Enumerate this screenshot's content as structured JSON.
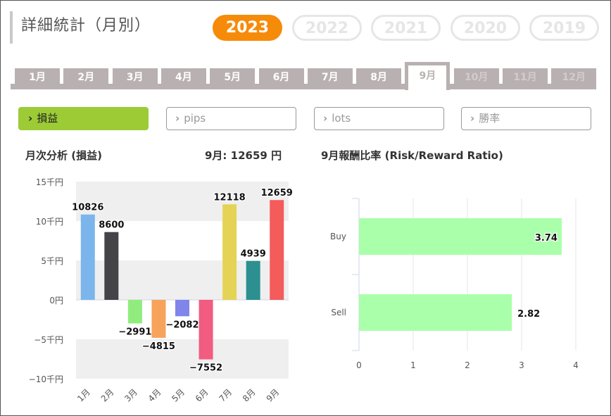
{
  "page": {
    "title": "詳細統計（月別）"
  },
  "years": [
    {
      "label": "2023",
      "active": true
    },
    {
      "label": "2022",
      "active": false
    },
    {
      "label": "2021",
      "active": false
    },
    {
      "label": "2020",
      "active": false
    },
    {
      "label": "2019",
      "active": false
    }
  ],
  "months": [
    "1月",
    "2月",
    "3月",
    "4月",
    "5月",
    "6月",
    "7月",
    "8月",
    "9月",
    "10月",
    "11月",
    "12月"
  ],
  "active_month_index": 8,
  "metrics": [
    {
      "label": "損益",
      "active": true
    },
    {
      "label": "pips",
      "active": false
    },
    {
      "label": "lots",
      "active": false
    },
    {
      "label": "勝率",
      "active": false
    }
  ],
  "monthly": {
    "title": "月次分析 (損益)",
    "summary": "9月:  12659 円"
  },
  "rr": {
    "title": "9月報酬比率 (Risk/Reward Ratio)"
  },
  "colors": {
    "accent": "#f68b0a",
    "active_metric": "#9ccb36",
    "tab": "#b9b1b1",
    "rr_bar": "#aaffaa"
  },
  "chart_data": [
    {
      "type": "bar",
      "categories": [
        "1月",
        "2月",
        "3月",
        "4月",
        "5月",
        "6月",
        "7月",
        "8月",
        "9月"
      ],
      "values": [
        10826,
        8600,
        -2991,
        -4815,
        -2082,
        -7552,
        12118,
        4939,
        12659
      ],
      "bar_colors": [
        "#7cb5ec",
        "#434348",
        "#90ed7d",
        "#f7a35c",
        "#8085e9",
        "#f15c80",
        "#e4d354",
        "#2b908f",
        "#f45b5b"
      ],
      "ylim": [
        -10000,
        15000
      ],
      "yticks": [
        15000,
        10000,
        5000,
        0,
        -5000,
        -10000
      ],
      "ytick_labels": [
        "15千円",
        "10千円",
        "5千円",
        "0円",
        "−5千円",
        "−10千円"
      ],
      "grid": "alternating bands"
    },
    {
      "type": "bar",
      "orientation": "horizontal",
      "categories": [
        "Buy",
        "Sell"
      ],
      "values": [
        3.74,
        2.82
      ],
      "xlim": [
        0,
        4
      ],
      "xticks": [
        0,
        1,
        2,
        3,
        4
      ]
    }
  ]
}
